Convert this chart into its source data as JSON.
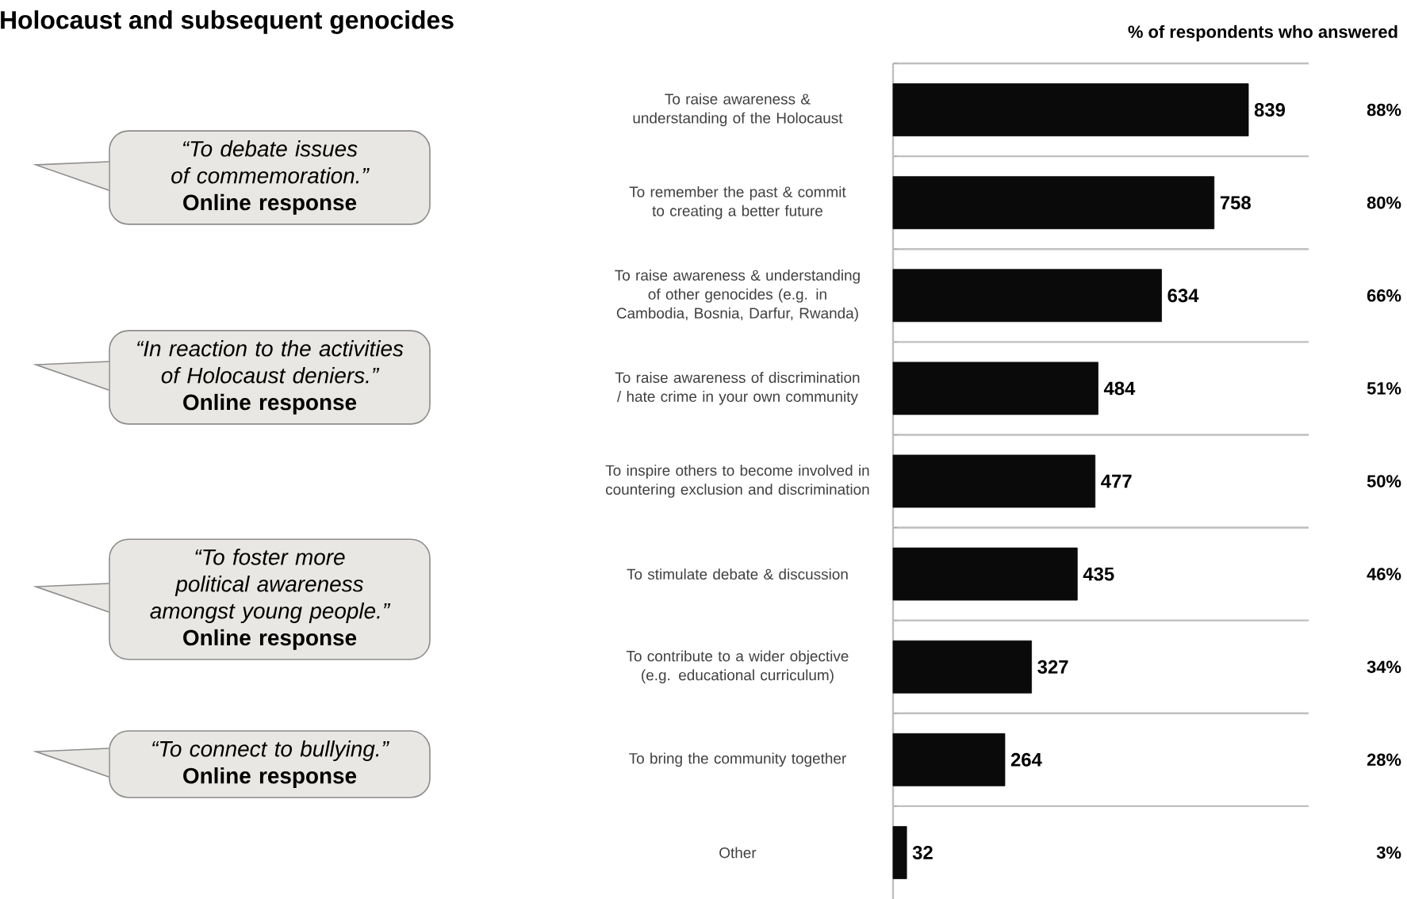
{
  "chart_data": {
    "type": "bar",
    "orientation": "horizontal",
    "title": "Holocaust and subsequent genocides",
    "categories": [
      "To raise awareness & understanding of the Holocaust",
      "To remember the past & commit to creating a better future",
      "To raise awareness & understanding of other genocides (e.g. in Cambodia, Bosnia, Darfur, Rwanda)",
      "To raise awareness of discrimination / hate crime in your own community",
      "To inspire others to become involved in countering exclusion and discrimination",
      "To stimulate debate & discussion",
      "To contribute to a wider objective (e.g. educational curriculum)",
      "To bring the community together",
      "Other"
    ],
    "values": [
      839,
      758,
      634,
      484,
      477,
      435,
      327,
      264,
      32
    ],
    "color": "#0a0a0a",
    "data_labels": true,
    "grid": "y",
    "annotations": [
      "% of respondents who answered",
      "88%",
      "80%",
      "66%",
      "51%",
      "50%",
      "46%",
      "34%",
      "28%",
      "3%",
      "“To debate issues of commemoration.”",
      "Online response",
      "“In reaction to the activities of Holocaust deniers.”",
      "Online response",
      "“To foster more political awareness amongst young people.”",
      "Online response",
      "“To connect to bullying.”",
      "Online response"
    ]
  }
}
